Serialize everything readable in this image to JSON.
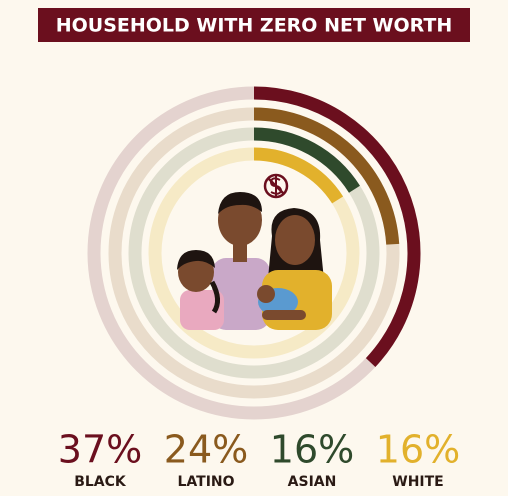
{
  "chart_data": {
    "type": "radial_bar",
    "title": "HOUSEHOLD WITH ZERO NET WORTH",
    "categories": [
      "BLACK",
      "LATINO",
      "ASIAN",
      "WHITE"
    ],
    "values": [
      37,
      24,
      16,
      16
    ],
    "value_labels": [
      "37%",
      "24%",
      "16%",
      "16%"
    ],
    "colors": [
      "#6b0f1e",
      "#8a5a1e",
      "#2f4a2c",
      "#e2b12c"
    ],
    "ylim": [
      0,
      100
    ]
  }
}
